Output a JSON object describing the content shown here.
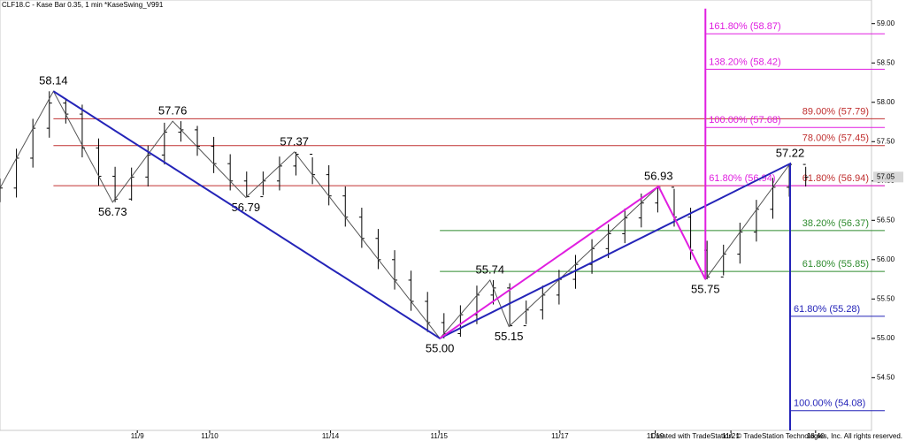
{
  "header": "CLF18.C - Kase Bar 0.35, 1 min  *KaseSwing_V991",
  "footer": "Created with TradeStation. © TradeStation Technologies, Inc. All rights reserved.",
  "chart_data": {
    "type": "ohlc",
    "color": "#000000",
    "xlim": [
      0,
      106
    ],
    "ylim": [
      53.83,
      59.3
    ],
    "xticks": [
      {
        "value": 16.7,
        "label": "11/9"
      },
      {
        "value": 25.5,
        "label": "11/10"
      },
      {
        "value": 40.2,
        "label": "11/14"
      },
      {
        "value": 53.4,
        "label": "11/15"
      },
      {
        "value": 68.1,
        "label": "11/17"
      },
      {
        "value": 79.7,
        "label": "11/19"
      },
      {
        "value": 88.9,
        "label": "11/21"
      },
      {
        "value": 99.2,
        "label": "18:40"
      }
    ],
    "yticks": [
      {
        "value": 59,
        "label": "59.00"
      },
      {
        "value": 58.5,
        "label": "58.50"
      },
      {
        "value": 58,
        "label": "58.00"
      },
      {
        "value": 57.5,
        "label": "57.50"
      },
      {
        "value": 57,
        "label": "57.00"
      },
      {
        "value": 56.5,
        "label": "56.50"
      },
      {
        "value": 56,
        "label": "56.00"
      },
      {
        "value": 55.5,
        "label": "55.50"
      },
      {
        "value": 55,
        "label": "55.00"
      },
      {
        "value": 54.5,
        "label": "54.50"
      }
    ],
    "x": [
      0,
      2,
      4,
      6,
      8,
      10,
      12,
      14,
      16,
      18,
      20,
      22,
      24,
      26,
      28,
      30,
      32,
      34,
      36,
      38,
      40,
      42,
      44,
      46,
      48,
      50,
      52,
      54,
      56,
      58,
      60,
      62,
      64,
      66,
      68,
      70,
      72,
      74,
      76,
      78,
      80,
      82,
      84,
      86,
      88,
      90,
      92,
      94,
      96,
      98
    ],
    "open": [
      56.85,
      56.91,
      57.29,
      57.67,
      57.99,
      57.85,
      57.42,
      57.06,
      56.77,
      57.05,
      57.33,
      57.62,
      57.65,
      57.44,
      57.22,
      57.0,
      56.8,
      57.0,
      57.19,
      57.34,
      57.08,
      56.81,
      56.54,
      56.27,
      56.0,
      55.74,
      55.47,
      55.2,
      55.06,
      55.3,
      55.55,
      55.64,
      55.16,
      55.36,
      55.55,
      55.75,
      55.94,
      56.14,
      56.33,
      56.53,
      56.72,
      56.92,
      56.54,
      56.12,
      55.78,
      56.07,
      56.35,
      56.64,
      56.92,
      57.21
    ],
    "high": [
      57.03,
      57.41,
      57.79,
      58.14,
      58.05,
      57.97,
      57.54,
      57.18,
      57.17,
      57.45,
      57.74,
      57.76,
      57.7,
      57.56,
      57.34,
      57.12,
      57.12,
      57.31,
      57.37,
      57.3,
      57.2,
      56.93,
      56.66,
      56.39,
      56.12,
      55.86,
      55.59,
      55.32,
      55.42,
      55.67,
      55.74,
      55.7,
      55.48,
      55.67,
      55.87,
      56.06,
      56.26,
      56.45,
      56.65,
      56.84,
      56.93,
      56.9,
      56.66,
      56.24,
      56.19,
      56.47,
      56.76,
      57.04,
      57.22,
      57.18
    ],
    "low": [
      56.73,
      56.79,
      57.17,
      57.55,
      57.73,
      57.3,
      56.94,
      56.73,
      56.75,
      56.93,
      57.21,
      57.5,
      57.32,
      57.1,
      56.88,
      56.79,
      56.82,
      56.88,
      57.07,
      56.96,
      56.69,
      56.42,
      56.15,
      55.88,
      55.62,
      55.35,
      55.08,
      55.0,
      55.02,
      55.18,
      55.43,
      55.15,
      55.18,
      55.24,
      55.43,
      55.63,
      55.82,
      56.02,
      56.21,
      56.41,
      56.6,
      56.42,
      56.0,
      55.75,
      55.8,
      55.95,
      56.23,
      56.52,
      56.8,
      56.93
    ],
    "close": [
      56.91,
      57.29,
      57.67,
      57.99,
      57.85,
      57.42,
      57.06,
      56.77,
      57.05,
      57.33,
      57.62,
      57.65,
      57.44,
      57.22,
      57.0,
      56.8,
      57.0,
      57.19,
      57.34,
      57.08,
      56.81,
      56.54,
      56.27,
      56.0,
      55.74,
      55.47,
      55.2,
      55.06,
      55.3,
      55.55,
      55.64,
      55.16,
      55.36,
      55.55,
      55.75,
      55.94,
      56.14,
      56.33,
      56.53,
      56.72,
      56.92,
      56.54,
      56.12,
      55.78,
      56.07,
      56.35,
      56.64,
      56.92,
      57.21,
      57.05
    ],
    "lines": [
      {
        "color": "#555555",
        "width": 1,
        "x": [
          0,
          6.5,
          13.7,
          21,
          29.9,
          35.8,
          53.5,
          59.6,
          61.9,
          80.1,
          85.8,
          96.1
        ],
        "y": [
          56.91,
          58.14,
          56.73,
          57.76,
          56.79,
          57.37,
          55.0,
          55.74,
          55.15,
          56.93,
          55.75,
          57.22
        ],
        "value_labels": [
          null,
          "58.14",
          "56.73",
          "57.76",
          "56.79",
          "57.37",
          "55.00",
          "55.74",
          "55.15",
          "56.93",
          "55.75",
          "57.22"
        ]
      },
      {
        "color": "#2424b8",
        "width": 2,
        "x": [
          6.5,
          53.5,
          96.1,
          96.1
        ],
        "y": [
          58.14,
          55.0,
          57.22,
          53.83
        ]
      },
      {
        "color": "#e01ee0",
        "width": 2,
        "x": [
          53.5,
          80.1,
          85.8,
          85.8
        ],
        "y": [
          55.0,
          56.93,
          55.75,
          59.19
        ]
      }
    ],
    "levels": [
      {
        "label": "89.00% (57.79)",
        "value": 57.79,
        "x_start": 6.5,
        "color": "#c03030"
      },
      {
        "label": "78.00% (57.45)",
        "value": 57.45,
        "x_start": 6.5,
        "color": "#c03030"
      },
      {
        "label": "61.80% (56.94)",
        "value": 56.94,
        "x_start": 6.5,
        "color": "#c03030"
      },
      {
        "label": "161.80% (58.87)",
        "value": 58.87,
        "x_start": 85.8,
        "color": "#e01ee0"
      },
      {
        "label": "138.20% (58.42)",
        "value": 58.42,
        "x_start": 85.8,
        "color": "#e01ee0"
      },
      {
        "label": "100.00% (57.68)",
        "value": 57.68,
        "x_start": 85.8,
        "color": "#e01ee0"
      },
      {
        "label": "61.80% (56.94)",
        "value": 56.94,
        "x_start": 85.8,
        "color": "#e01ee0"
      },
      {
        "label": "38.20% (56.37)",
        "value": 56.37,
        "x_start": 53.5,
        "color": "#2e8b2e"
      },
      {
        "label": "61.80% (55.85)",
        "value": 55.85,
        "x_start": 53.5,
        "color": "#2e8b2e"
      },
      {
        "label": "61.80% (55.28)",
        "value": 55.28,
        "x_start": 96.1,
        "color": "#2424b8"
      },
      {
        "label": "100.00% (54.08)",
        "value": 54.08,
        "x_start": 96.1,
        "color": "#2424b8"
      }
    ]
  }
}
